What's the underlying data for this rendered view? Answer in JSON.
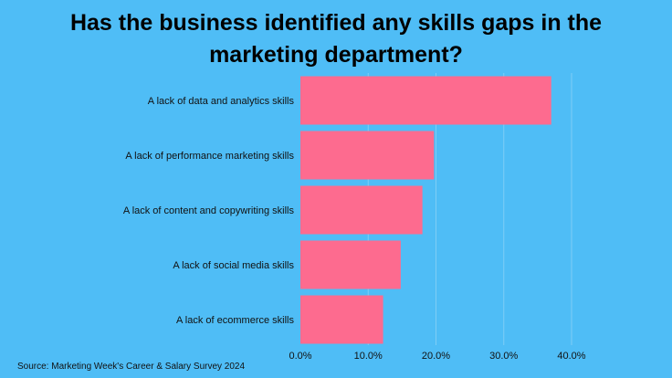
{
  "chart_data": {
    "type": "bar",
    "orientation": "horizontal",
    "title_lines": [
      "Has the business identified any skills gaps in the",
      "marketing department?"
    ],
    "categories": [
      "A lack of data and analytics skills",
      "A lack of performance marketing skills",
      "A lack of content and copywriting skills",
      "A lack of social media skills",
      "A lack of ecommerce skills"
    ],
    "values": [
      37,
      19.7,
      18,
      14.8,
      12.2
    ],
    "xlim": [
      0,
      40
    ],
    "xticks": [
      0,
      10,
      20,
      30,
      40
    ],
    "xtick_labels": [
      "0.0%",
      "10.0%",
      "20.0%",
      "30.0%",
      "40.0%"
    ],
    "grid": "vertical",
    "legend": "none",
    "source": "Source: Marketing Week's Career & Salary Survey 2024",
    "colors": {
      "background": "#4fbdf6",
      "bar": "#fd6b8f",
      "grid": "#7fcdf5"
    }
  }
}
